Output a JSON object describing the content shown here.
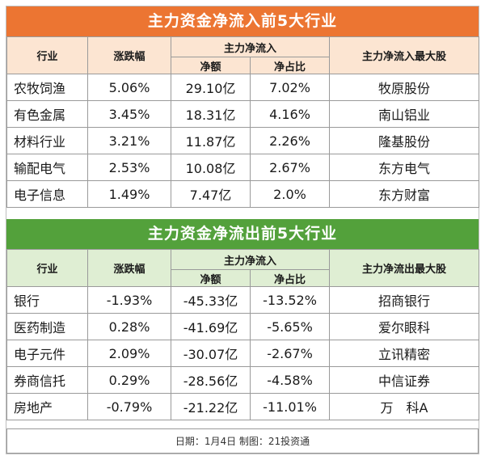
{
  "chart_data": [
    {
      "type": "table",
      "title": "主力资金净流入前5大行业",
      "columns": {
        "industry": "行业",
        "change": "涨跌幅",
        "group": "主力净流入",
        "net_amount": "净额",
        "net_ratio": "净占比",
        "top_stock": "主力净流入最大股"
      },
      "rows": [
        {
          "industry": "农牧饲渔",
          "change": "5.06%",
          "net_amount": "29.10亿",
          "net_ratio": "7.02%",
          "top_stock": "牧原股份"
        },
        {
          "industry": "有色金属",
          "change": "3.45%",
          "net_amount": "18.31亿",
          "net_ratio": "4.16%",
          "top_stock": "南山铝业"
        },
        {
          "industry": "材料行业",
          "change": "3.21%",
          "net_amount": "11.87亿",
          "net_ratio": "2.26%",
          "top_stock": "隆基股份"
        },
        {
          "industry": "输配电气",
          "change": "2.53%",
          "net_amount": "10.08亿",
          "net_ratio": "2.67%",
          "top_stock": "东方电气"
        },
        {
          "industry": "电子信息",
          "change": "1.49%",
          "net_amount": "7.47亿",
          "net_ratio": "2.0%",
          "top_stock": "东方财富"
        }
      ]
    },
    {
      "type": "table",
      "title": "主力资金净流出前5大行业",
      "columns": {
        "industry": "行业",
        "change": "涨跌幅",
        "group": "主力净流入",
        "net_amount": "净额",
        "net_ratio": "净占比",
        "top_stock": "主力净流出最大股"
      },
      "rows": [
        {
          "industry": "银行",
          "change": "-1.93%",
          "net_amount": "-45.33亿",
          "net_ratio": "-13.52%",
          "top_stock": "招商银行"
        },
        {
          "industry": "医药制造",
          "change": "0.28%",
          "net_amount": "-41.69亿",
          "net_ratio": "-5.65%",
          "top_stock": "爱尔眼科"
        },
        {
          "industry": "电子元件",
          "change": "2.09%",
          "net_amount": "-30.07亿",
          "net_ratio": "-2.67%",
          "top_stock": "立讯精密"
        },
        {
          "industry": "券商信托",
          "change": "0.29%",
          "net_amount": "-28.56亿",
          "net_ratio": "-4.58%",
          "top_stock": "中信证券"
        },
        {
          "industry": "房地产",
          "change": "-0.79%",
          "net_amount": "-21.22亿",
          "net_ratio": "-11.01%",
          "top_stock": "万　科A"
        }
      ]
    }
  ],
  "footer": "日期：1月4日 制图：21投资通",
  "colors": {
    "inflow_banner": "#ec7532",
    "inflow_header": "#fce5d2",
    "outflow_banner": "#53a13b",
    "outflow_header": "#dfeed3"
  }
}
